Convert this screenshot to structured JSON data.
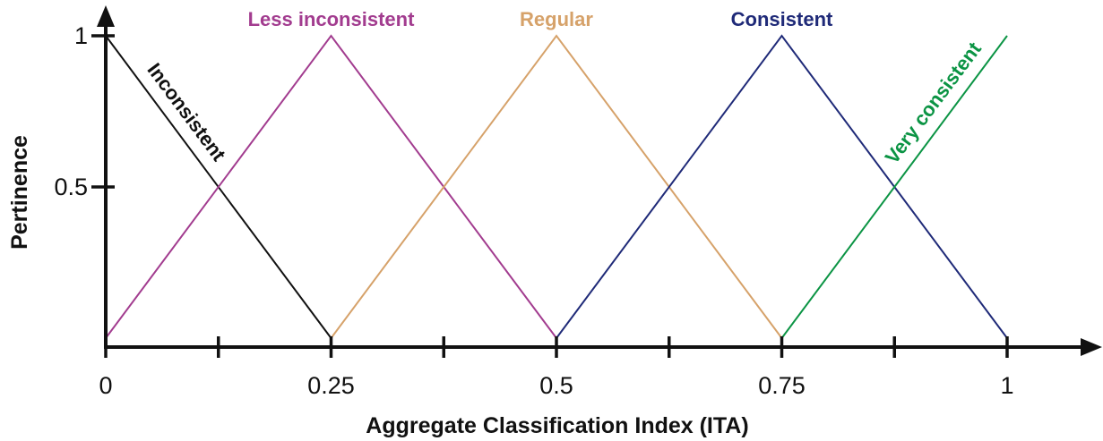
{
  "chart_data": {
    "type": "line",
    "xlabel": "Aggregate Classification Index  (ITA)",
    "ylabel": "Pertinence",
    "xlim": [
      0,
      1
    ],
    "ylim": [
      0,
      1
    ],
    "x_ticks": [
      0,
      0.125,
      0.25,
      0.375,
      0.5,
      0.625,
      0.75,
      0.875,
      1
    ],
    "x_tick_labels": [
      {
        "value": 0,
        "label": "0"
      },
      {
        "value": 0.25,
        "label": "0.25"
      },
      {
        "value": 0.5,
        "label": "0.5"
      },
      {
        "value": 0.75,
        "label": "0.75"
      },
      {
        "value": 1,
        "label": "1"
      }
    ],
    "y_ticks": [
      {
        "value": 0.5,
        "label": "0.5"
      },
      {
        "value": 1,
        "label": "1"
      }
    ],
    "grid": false,
    "legend": "none",
    "series": [
      {
        "name": "Inconsistent",
        "color": "#111111",
        "points": [
          [
            0,
            1
          ],
          [
            0.25,
            0
          ]
        ],
        "label_placement": "along-line"
      },
      {
        "name": "Less inconsistent",
        "color": "#a23c8f",
        "points": [
          [
            0,
            0
          ],
          [
            0.25,
            1
          ],
          [
            0.5,
            0
          ]
        ],
        "label_placement": "above-peak"
      },
      {
        "name": "Regular",
        "color": "#d6a26a",
        "points": [
          [
            0.25,
            0
          ],
          [
            0.5,
            1
          ],
          [
            0.75,
            0
          ]
        ],
        "label_placement": "above-peak"
      },
      {
        "name": "Consistent",
        "color": "#1f2a78",
        "points": [
          [
            0.5,
            0
          ],
          [
            0.75,
            1
          ],
          [
            1,
            0
          ]
        ],
        "label_placement": "above-peak"
      },
      {
        "name": "Very consistent",
        "color": "#0b9444",
        "points": [
          [
            0.75,
            0
          ],
          [
            1,
            1
          ]
        ],
        "label_placement": "along-line"
      }
    ]
  }
}
